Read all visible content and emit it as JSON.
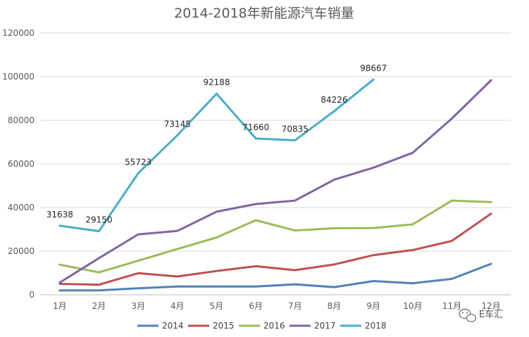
{
  "chart_data": {
    "type": "line",
    "title": "2014-2018年新能源汽车销量",
    "categories": [
      "1月",
      "2月",
      "3月",
      "4月",
      "5月",
      "6月",
      "7月",
      "8月",
      "9月",
      "10月",
      "11月",
      "12月"
    ],
    "ylim": [
      0,
      120000
    ],
    "yticks": [
      0,
      20000,
      40000,
      60000,
      80000,
      100000,
      120000
    ],
    "grid": true,
    "legend_position": "bottom",
    "series": [
      {
        "name": "2014",
        "color": "#4f81bd",
        "values": [
          2000,
          2000,
          3000,
          3800,
          3800,
          3800,
          4800,
          3500,
          6300,
          5300,
          7300,
          14200
        ]
      },
      {
        "name": "2015",
        "color": "#c0504d",
        "values": [
          5000,
          4600,
          9900,
          8400,
          10900,
          13100,
          11300,
          13900,
          18200,
          20500,
          24700,
          37200
        ]
      },
      {
        "name": "2016",
        "color": "#9bbb59",
        "values": [
          13800,
          10300,
          15600,
          21000,
          26300,
          34200,
          29500,
          30500,
          30600,
          32300,
          43200,
          42500
        ]
      },
      {
        "name": "2017",
        "color": "#8064a2",
        "values": [
          5600,
          16800,
          27700,
          29300,
          38100,
          41600,
          43200,
          52800,
          58300,
          65100,
          80800,
          98400
        ]
      },
      {
        "name": "2018",
        "color": "#4bacc6",
        "values": [
          31638,
          29150,
          55723,
          73145,
          92188,
          71660,
          70835,
          84226,
          98667,
          null,
          null,
          null
        ],
        "data_labels": [
          "31638",
          "29150",
          "55723",
          "73145",
          "92188",
          "71660",
          "70835",
          "84226",
          "98667"
        ]
      }
    ]
  },
  "watermark": {
    "text": "E车汇",
    "icon": "wechat-icon"
  }
}
